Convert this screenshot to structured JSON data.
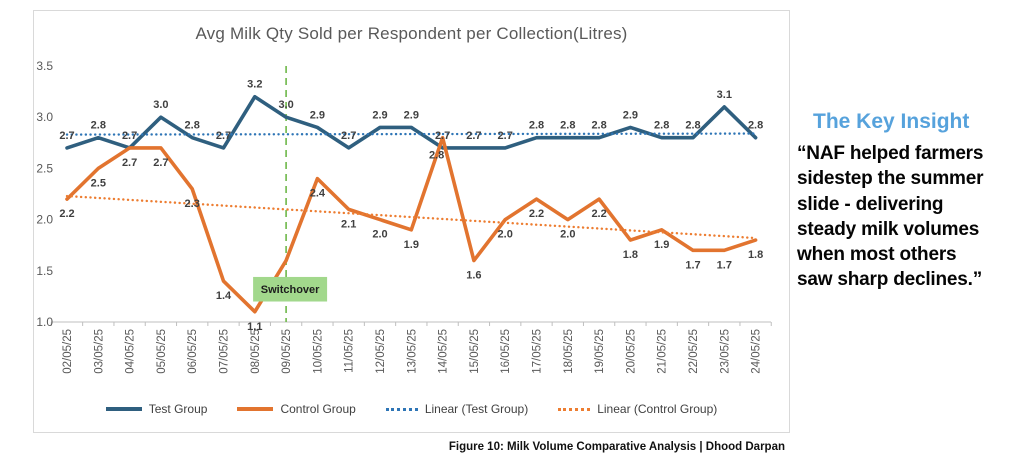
{
  "chart_data": {
    "type": "line",
    "title": "Avg Milk Qty Sold per Respondent per Collection(Litres)",
    "ylim": [
      1.0,
      3.5
    ],
    "yticks": [
      1.0,
      1.5,
      2.0,
      2.5,
      3.0,
      3.5
    ],
    "grid": false,
    "legend_position": "bottom",
    "categories": [
      "02/05/25",
      "03/05/25",
      "04/05/25",
      "05/05/25",
      "06/05/25",
      "07/05/25",
      "08/05/25",
      "09/05/25",
      "10/05/25",
      "11/05/25",
      "12/05/25",
      "13/05/25",
      "14/05/25",
      "15/05/25",
      "16/05/25",
      "17/05/25",
      "18/05/25",
      "19/05/25",
      "20/05/25",
      "21/05/25",
      "22/05/25",
      "23/05/25",
      "24/05/25"
    ],
    "series": [
      {
        "name": "Test Group",
        "color": "#2f5f7f",
        "labels": "above",
        "values": [
          2.7,
          2.8,
          2.7,
          3.0,
          2.8,
          2.7,
          3.2,
          3.0,
          2.9,
          2.7,
          2.9,
          2.9,
          2.7,
          2.7,
          2.7,
          2.8,
          2.8,
          2.8,
          2.9,
          2.8,
          2.8,
          3.1,
          2.8
        ]
      },
      {
        "name": "Control Group",
        "color": "#e2742f",
        "labels": "below",
        "hide_labels": [
          7
        ],
        "values": [
          2.2,
          2.5,
          2.7,
          2.7,
          2.3,
          1.4,
          1.1,
          1.6,
          2.4,
          2.1,
          2.0,
          1.9,
          2.8,
          1.6,
          2.0,
          2.2,
          2.0,
          2.2,
          1.8,
          1.9,
          1.7,
          1.7,
          1.8
        ]
      }
    ],
    "trendlines": [
      {
        "name": "Linear (Test Group)",
        "color": "#2e75b6",
        "start": 2.83,
        "end": 2.84
      },
      {
        "name": "Linear (Control Group)",
        "color": "#ed7d31",
        "start": 2.23,
        "end": 1.82
      }
    ],
    "annotation": {
      "label": "Switchover",
      "at_category": "09/05/25",
      "x_index": 7,
      "vline_color": "#76bc53",
      "box_fill": "#a2d88c",
      "box_value_top": 1.44,
      "box_value_bottom": 1.2
    },
    "axis_color": "#bfbfbf",
    "tick_label_color": "#595959",
    "data_label_color": "#404040"
  },
  "caption": "Figure 10: Milk Volume Comparative Analysis | Dhood Darpan",
  "insight": {
    "heading": "The Key Insight",
    "heading_color": "#56a2dc",
    "quote": "“NAF helped farmers\nsidestep the summer\nslide - delivering\nsteady milk volumes\nwhen most others\nsaw sharp declines.”"
  }
}
